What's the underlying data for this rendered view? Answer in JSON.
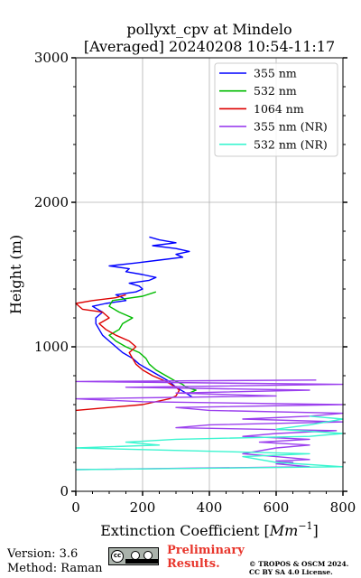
{
  "chart_data": {
    "type": "line",
    "title": "pollyxt_cpv at Mindelo",
    "subtitle": "[Averaged] 20240208 10:54-11:17",
    "xlabel": "Extinction Coefficient [",
    "xlabel_unit": "Mm",
    "xlabel_exp": "−1",
    "xlabel_close": "]",
    "ylabel": "Height (m)",
    "xlim": [
      0,
      800
    ],
    "ylim": [
      0,
      3000
    ],
    "xticks": [
      0,
      200,
      400,
      600,
      800
    ],
    "xtick_labels": [
      "0",
      "200",
      "400",
      "600",
      "800"
    ],
    "yticks": [
      0,
      1000,
      2000,
      3000
    ],
    "ytick_labels": [
      "0",
      "1000",
      "2000",
      "3000"
    ],
    "grid": true,
    "legend_position": "top-right",
    "series": [
      {
        "name": "355 nm",
        "color": "#0000ff",
        "points": [
          [
            350,
            650
          ],
          [
            330,
            680
          ],
          [
            300,
            720
          ],
          [
            280,
            760
          ],
          [
            250,
            800
          ],
          [
            220,
            840
          ],
          [
            190,
            880
          ],
          [
            170,
            920
          ],
          [
            140,
            960
          ],
          [
            120,
            1000
          ],
          [
            100,
            1040
          ],
          [
            80,
            1080
          ],
          [
            70,
            1120
          ],
          [
            60,
            1160
          ],
          [
            60,
            1200
          ],
          [
            80,
            1240
          ],
          [
            50,
            1280
          ],
          [
            90,
            1300
          ],
          [
            150,
            1320
          ],
          [
            140,
            1340
          ],
          [
            120,
            1360
          ],
          [
            180,
            1380
          ],
          [
            200,
            1400
          ],
          [
            190,
            1420
          ],
          [
            160,
            1440
          ],
          [
            220,
            1460
          ],
          [
            240,
            1480
          ],
          [
            200,
            1500
          ],
          [
            150,
            1520
          ],
          [
            160,
            1540
          ],
          [
            100,
            1560
          ],
          [
            180,
            1580
          ],
          [
            250,
            1600
          ],
          [
            320,
            1620
          ],
          [
            300,
            1640
          ],
          [
            340,
            1660
          ],
          [
            300,
            1680
          ],
          [
            230,
            1700
          ],
          [
            300,
            1720
          ],
          [
            250,
            1740
          ],
          [
            220,
            1760
          ]
        ]
      },
      {
        "name": "532 nm",
        "color": "#00bb00",
        "points": [
          [
            340,
            680
          ],
          [
            360,
            700
          ],
          [
            330,
            720
          ],
          [
            320,
            740
          ],
          [
            300,
            760
          ],
          [
            270,
            800
          ],
          [
            240,
            840
          ],
          [
            220,
            880
          ],
          [
            210,
            920
          ],
          [
            190,
            960
          ],
          [
            150,
            1000
          ],
          [
            120,
            1040
          ],
          [
            100,
            1080
          ],
          [
            130,
            1120
          ],
          [
            140,
            1160
          ],
          [
            170,
            1200
          ],
          [
            130,
            1240
          ],
          [
            100,
            1280
          ],
          [
            110,
            1320
          ],
          [
            200,
            1350
          ],
          [
            240,
            1380
          ]
        ]
      },
      {
        "name": "1064 nm",
        "color": "#dd0000",
        "points": [
          [
            0,
            560
          ],
          [
            100,
            580
          ],
          [
            200,
            600
          ],
          [
            280,
            640
          ],
          [
            300,
            660
          ],
          [
            310,
            700
          ],
          [
            300,
            720
          ],
          [
            270,
            760
          ],
          [
            230,
            800
          ],
          [
            200,
            840
          ],
          [
            180,
            880
          ],
          [
            170,
            920
          ],
          [
            160,
            960
          ],
          [
            180,
            1000
          ],
          [
            160,
            1040
          ],
          [
            120,
            1080
          ],
          [
            90,
            1120
          ],
          [
            70,
            1160
          ],
          [
            100,
            1200
          ],
          [
            80,
            1240
          ],
          [
            20,
            1260
          ],
          [
            0,
            1300
          ],
          [
            50,
            1320
          ],
          [
            120,
            1340
          ],
          [
            150,
            1360
          ]
        ]
      },
      {
        "name": "355 nm (NR)",
        "color": "#9b40ee",
        "points": [
          [
            0,
            150
          ],
          [
            700,
            170
          ],
          [
            650,
            180
          ],
          [
            600,
            190
          ],
          [
            650,
            200
          ],
          [
            600,
            210
          ],
          [
            700,
            220
          ],
          [
            600,
            240
          ],
          [
            500,
            260
          ],
          [
            600,
            300
          ],
          [
            700,
            320
          ],
          [
            550,
            340
          ],
          [
            700,
            360
          ],
          [
            500,
            380
          ],
          [
            600,
            400
          ],
          [
            780,
            420
          ],
          [
            300,
            440
          ],
          [
            400,
            460
          ],
          [
            800,
            480
          ],
          [
            500,
            500
          ],
          [
            700,
            520
          ],
          [
            800,
            540
          ],
          [
            400,
            560
          ],
          [
            300,
            580
          ],
          [
            800,
            600
          ],
          [
            200,
            620
          ],
          [
            0,
            640
          ],
          [
            600,
            660
          ],
          [
            300,
            680
          ],
          [
            700,
            700
          ],
          [
            150,
            720
          ],
          [
            800,
            740
          ],
          [
            0,
            760
          ],
          [
            720,
            770
          ]
        ]
      },
      {
        "name": "532 nm (NR)",
        "color": "#3cf5d0",
        "points": [
          [
            0,
            150
          ],
          [
            800,
            170
          ],
          [
            600,
            200
          ],
          [
            500,
            240
          ],
          [
            700,
            260
          ],
          [
            0,
            300
          ],
          [
            250,
            320
          ],
          [
            150,
            340
          ],
          [
            300,
            360
          ],
          [
            700,
            380
          ],
          [
            800,
            400
          ],
          [
            600,
            430
          ],
          [
            700,
            460
          ],
          [
            800,
            500
          ],
          [
            700,
            520
          ]
        ]
      }
    ]
  },
  "footer": {
    "version": "Version: 3.6",
    "method": "Method: Raman",
    "preliminary_line1": "Preliminary",
    "preliminary_line2": "Results.",
    "copyright_line1": "© TROPOS & OSCM 2024.",
    "copyright_line2": "CC BY SA 4.0 License.",
    "cc_badge_text": "cc"
  }
}
